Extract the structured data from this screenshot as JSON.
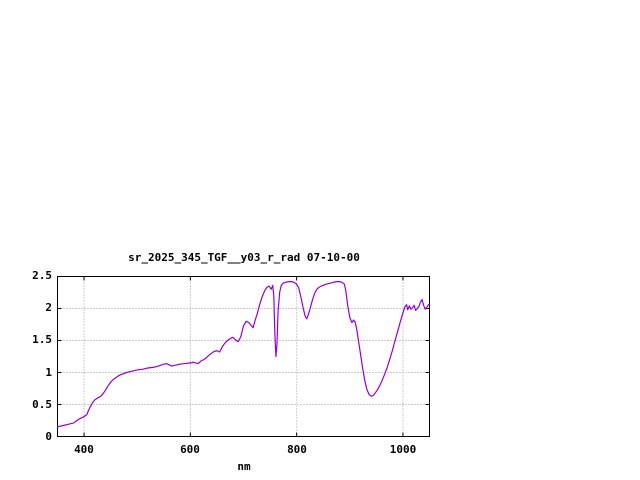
{
  "chart_data": {
    "type": "line",
    "title": "sr_2025_345_TGF__y03_r_rad 07-10-00",
    "xlabel": "nm",
    "ylabel": "",
    "xlim": [
      350,
      1050
    ],
    "ylim": [
      0,
      2.5
    ],
    "xticks": [
      400,
      600,
      800,
      1000
    ],
    "xtick_labels": [
      "400",
      "600",
      "800",
      "1000"
    ],
    "yticks": [
      0,
      0.5,
      1,
      1.5,
      2,
      2.5
    ],
    "ytick_labels": [
      "0",
      "0.5",
      "1",
      "1.5",
      "2",
      "2.5"
    ],
    "grid": true,
    "legend": "none",
    "line_color": "#9400d3",
    "series_name": "sr_2025_345_TGF__y03_r_rad",
    "points": [
      [
        350,
        0.15
      ],
      [
        355,
        0.16
      ],
      [
        360,
        0.17
      ],
      [
        365,
        0.18
      ],
      [
        370,
        0.19
      ],
      [
        375,
        0.2
      ],
      [
        380,
        0.21
      ],
      [
        385,
        0.24
      ],
      [
        390,
        0.27
      ],
      [
        395,
        0.29
      ],
      [
        400,
        0.31
      ],
      [
        405,
        0.34
      ],
      [
        408,
        0.4
      ],
      [
        412,
        0.47
      ],
      [
        416,
        0.53
      ],
      [
        420,
        0.57
      ],
      [
        425,
        0.6
      ],
      [
        430,
        0.62
      ],
      [
        435,
        0.66
      ],
      [
        440,
        0.72
      ],
      [
        445,
        0.79
      ],
      [
        450,
        0.85
      ],
      [
        455,
        0.89
      ],
      [
        460,
        0.92
      ],
      [
        465,
        0.95
      ],
      [
        470,
        0.97
      ],
      [
        480,
        1.0
      ],
      [
        490,
        1.02
      ],
      [
        500,
        1.04
      ],
      [
        510,
        1.05
      ],
      [
        520,
        1.07
      ],
      [
        530,
        1.08
      ],
      [
        540,
        1.1
      ],
      [
        550,
        1.13
      ],
      [
        555,
        1.14
      ],
      [
        560,
        1.12
      ],
      [
        565,
        1.1
      ],
      [
        570,
        1.11
      ],
      [
        580,
        1.13
      ],
      [
        590,
        1.14
      ],
      [
        600,
        1.15
      ],
      [
        605,
        1.16
      ],
      [
        610,
        1.15
      ],
      [
        615,
        1.14
      ],
      [
        620,
        1.18
      ],
      [
        625,
        1.2
      ],
      [
        630,
        1.23
      ],
      [
        635,
        1.27
      ],
      [
        640,
        1.3
      ],
      [
        645,
        1.33
      ],
      [
        650,
        1.34
      ],
      [
        655,
        1.32
      ],
      [
        660,
        1.4
      ],
      [
        665,
        1.46
      ],
      [
        670,
        1.5
      ],
      [
        675,
        1.53
      ],
      [
        680,
        1.55
      ],
      [
        685,
        1.51
      ],
      [
        690,
        1.48
      ],
      [
        695,
        1.56
      ],
      [
        700,
        1.73
      ],
      [
        705,
        1.8
      ],
      [
        710,
        1.78
      ],
      [
        715,
        1.73
      ],
      [
        718,
        1.7
      ],
      [
        722,
        1.82
      ],
      [
        726,
        1.92
      ],
      [
        730,
        2.05
      ],
      [
        735,
        2.18
      ],
      [
        740,
        2.28
      ],
      [
        744,
        2.33
      ],
      [
        748,
        2.35
      ],
      [
        752,
        2.3
      ],
      [
        755,
        2.36
      ],
      [
        757,
        2.2
      ],
      [
        759,
        1.6
      ],
      [
        761,
        1.25
      ],
      [
        763,
        1.45
      ],
      [
        765,
        1.95
      ],
      [
        768,
        2.25
      ],
      [
        771,
        2.36
      ],
      [
        775,
        2.4
      ],
      [
        780,
        2.41
      ],
      [
        785,
        2.42
      ],
      [
        790,
        2.42
      ],
      [
        795,
        2.41
      ],
      [
        800,
        2.38
      ],
      [
        804,
        2.32
      ],
      [
        808,
        2.18
      ],
      [
        812,
        2.02
      ],
      [
        816,
        1.88
      ],
      [
        819,
        1.84
      ],
      [
        822,
        1.9
      ],
      [
        826,
        2.02
      ],
      [
        830,
        2.14
      ],
      [
        834,
        2.24
      ],
      [
        838,
        2.3
      ],
      [
        842,
        2.33
      ],
      [
        846,
        2.35
      ],
      [
        850,
        2.36
      ],
      [
        855,
        2.38
      ],
      [
        860,
        2.39
      ],
      [
        865,
        2.4
      ],
      [
        870,
        2.41
      ],
      [
        875,
        2.42
      ],
      [
        880,
        2.42
      ],
      [
        885,
        2.41
      ],
      [
        890,
        2.38
      ],
      [
        893,
        2.25
      ],
      [
        896,
        2.05
      ],
      [
        900,
        1.86
      ],
      [
        904,
        1.78
      ],
      [
        907,
        1.82
      ],
      [
        910,
        1.79
      ],
      [
        913,
        1.68
      ],
      [
        916,
        1.52
      ],
      [
        920,
        1.3
      ],
      [
        924,
        1.08
      ],
      [
        928,
        0.88
      ],
      [
        932,
        0.74
      ],
      [
        936,
        0.66
      ],
      [
        940,
        0.63
      ],
      [
        944,
        0.64
      ],
      [
        948,
        0.68
      ],
      [
        952,
        0.73
      ],
      [
        956,
        0.79
      ],
      [
        960,
        0.86
      ],
      [
        965,
        0.96
      ],
      [
        970,
        1.07
      ],
      [
        975,
        1.2
      ],
      [
        980,
        1.34
      ],
      [
        985,
        1.49
      ],
      [
        990,
        1.64
      ],
      [
        995,
        1.79
      ],
      [
        1000,
        1.93
      ],
      [
        1004,
        2.03
      ],
      [
        1007,
        2.06
      ],
      [
        1009,
        1.98
      ],
      [
        1012,
        2.04
      ],
      [
        1015,
        1.99
      ],
      [
        1018,
        2.01
      ],
      [
        1021,
        2.05
      ],
      [
        1024,
        1.97
      ],
      [
        1027,
        2.0
      ],
      [
        1030,
        2.03
      ],
      [
        1033,
        2.1
      ],
      [
        1036,
        2.14
      ],
      [
        1039,
        2.05
      ],
      [
        1042,
        1.99
      ],
      [
        1045,
        2.02
      ],
      [
        1048,
        2.06
      ],
      [
        1050,
        2.05
      ]
    ]
  }
}
